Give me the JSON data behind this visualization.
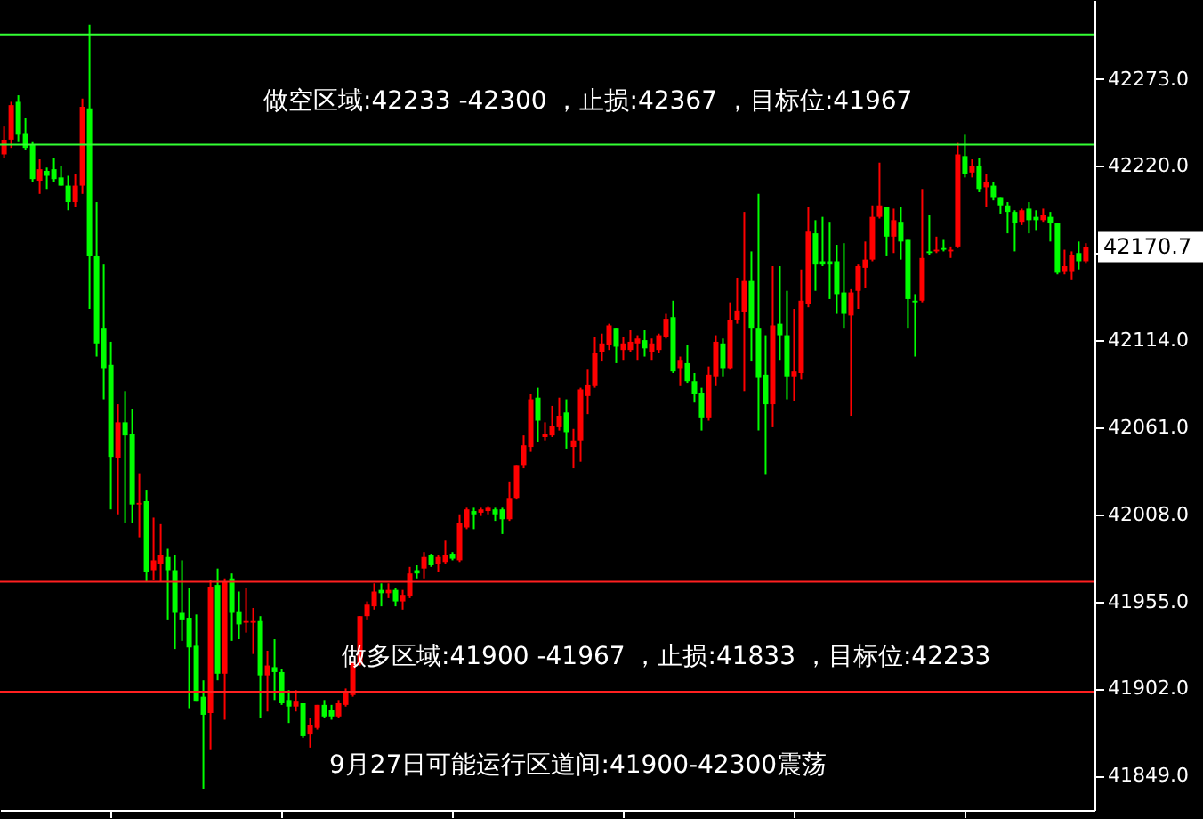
{
  "chart_data": {
    "type": "candlestick",
    "categories": [
      null,
      null,
      null,
      null,
      null,
      null,
      null,
      null,
      null,
      null,
      null,
      null,
      null,
      null,
      null,
      null,
      null,
      null,
      null,
      null,
      null,
      null,
      null,
      null,
      null,
      null,
      null,
      null,
      null,
      null,
      null,
      null,
      null,
      null,
      null,
      null,
      null,
      null,
      null,
      null,
      null,
      null,
      null,
      null,
      null,
      null,
      null,
      null,
      null,
      null,
      null,
      null,
      null,
      null,
      null,
      null,
      null,
      null,
      null,
      null,
      null,
      null,
      null,
      null,
      null,
      null,
      null,
      null,
      null,
      null,
      null,
      null,
      null,
      null,
      null,
      null,
      null,
      null,
      null,
      null,
      null,
      null,
      null,
      null,
      null,
      null,
      null,
      null,
      null,
      null,
      null,
      null,
      null,
      null,
      null,
      null,
      null,
      null,
      null,
      null,
      null,
      null,
      null,
      null,
      null,
      null,
      null,
      null,
      null,
      null,
      null,
      null,
      null,
      null,
      null,
      null,
      null,
      null,
      null,
      null,
      null,
      null,
      null,
      null,
      null,
      null,
      null,
      null,
      null,
      null,
      null,
      null,
      null,
      null,
      null,
      null,
      null,
      null,
      null,
      null,
      null,
      null,
      null,
      null,
      null,
      null,
      null,
      null,
      null,
      null,
      null,
      null,
      null
    ],
    "ohlc": [
      [
        42227,
        42244,
        42225,
        42236
      ],
      [
        42236,
        42259,
        42231,
        42257
      ],
      [
        42259,
        42263,
        42235,
        42239
      ],
      [
        42240,
        42249,
        42230,
        42231
      ],
      [
        42233,
        42235,
        42210,
        42212
      ],
      [
        42211,
        42224,
        42203,
        42218
      ],
      [
        42217,
        42219,
        42206,
        42214
      ],
      [
        42218,
        42225,
        42210,
        42212
      ],
      [
        42213,
        42220,
        42208,
        42208
      ],
      [
        42208,
        42214,
        42193,
        42198
      ],
      [
        42198,
        42215,
        42195,
        42208
      ],
      [
        42208,
        42261,
        42203,
        42256
      ],
      [
        42255,
        42306,
        42133,
        42165
      ],
      [
        42165,
        42198,
        42104,
        42112
      ],
      [
        42121,
        42160,
        42078,
        42097
      ],
      [
        42099,
        42113,
        42011,
        42043
      ],
      [
        42042,
        42075,
        42008,
        42064
      ],
      [
        42064,
        42083,
        42003,
        42056
      ],
      [
        42057,
        42072,
        42003,
        42014
      ],
      [
        42014,
        42033,
        41994,
        42015
      ],
      [
        42016,
        42023,
        41967,
        41973
      ],
      [
        41974,
        42006,
        41968,
        41980
      ],
      [
        41978,
        42002,
        41967,
        41983
      ],
      [
        41982,
        41987,
        41944,
        41974
      ],
      [
        41974,
        41983,
        41926,
        41948
      ],
      [
        41948,
        41980,
        41931,
        41944
      ],
      [
        41945,
        41963,
        41890,
        41927
      ],
      [
        41928,
        41947,
        41894,
        41894
      ],
      [
        41897,
        41907,
        41841,
        41886
      ],
      [
        41887,
        41968,
        41865,
        41964
      ],
      [
        41965,
        41975,
        41907,
        41911
      ],
      [
        41911,
        41969,
        41883,
        41967
      ],
      [
        41969,
        41972,
        41931,
        41948
      ],
      [
        41949,
        41961,
        41932,
        41941
      ],
      [
        41942,
        41963,
        41936,
        41943
      ],
      [
        41942,
        41951,
        41923,
        41943
      ],
      [
        41943,
        41946,
        41884,
        41910
      ],
      [
        41910,
        41925,
        41888,
        41916
      ],
      [
        41915,
        41932,
        41895,
        41912
      ],
      [
        41912,
        41914,
        41892,
        41893
      ],
      [
        41895,
        41901,
        41881,
        41891
      ],
      [
        41891,
        41901,
        41888,
        41894
      ],
      [
        41893,
        41893,
        41872,
        41873
      ],
      [
        41874,
        41884,
        41866,
        41880
      ],
      [
        41878,
        41892,
        41877,
        41892
      ],
      [
        41892,
        41895,
        41884,
        41885
      ],
      [
        41889,
        41892,
        41883,
        41885
      ],
      [
        41885,
        41895,
        41884,
        41893
      ],
      [
        41892,
        41902,
        41891,
        41899
      ],
      [
        41898,
        41918,
        41897,
        41918
      ],
      [
        41917,
        41946,
        41916,
        41946
      ],
      [
        41946,
        41955,
        41944,
        41953
      ],
      [
        41952,
        41966,
        41950,
        41961
      ],
      [
        41962,
        41966,
        41952,
        41960
      ],
      [
        41960,
        41966,
        41957,
        41962
      ],
      [
        41962,
        41963,
        41952,
        41955
      ],
      [
        41955,
        41962,
        41950,
        41959
      ],
      [
        41958,
        41976,
        41957,
        41972
      ],
      [
        41974,
        41977,
        41969,
        41972
      ],
      [
        41975,
        41985,
        41969,
        41982
      ],
      [
        41983,
        41984,
        41976,
        41977
      ],
      [
        41978,
        41983,
        41973,
        41982
      ],
      [
        41979,
        41992,
        41978,
        41983
      ],
      [
        41984,
        41985,
        41980,
        41981
      ],
      [
        41980,
        42008,
        41979,
        42003
      ],
      [
        42000,
        42012,
        41999,
        42011
      ],
      [
        42010,
        42012,
        41999,
        42008
      ],
      [
        42009,
        42012,
        42007,
        42011
      ],
      [
        42010,
        42013,
        42008,
        42012
      ],
      [
        42011,
        42012,
        42004,
        42008
      ],
      [
        42011,
        42012,
        41996,
        42005
      ],
      [
        42005,
        42028,
        42004,
        42018
      ],
      [
        42018,
        42038,
        42017,
        42038
      ],
      [
        42038,
        42056,
        42036,
        42050
      ],
      [
        42049,
        42081,
        42046,
        42078
      ],
      [
        42079,
        42085,
        42052,
        42065
      ],
      [
        42055,
        42064,
        42053,
        42057
      ],
      [
        42056,
        42074,
        42055,
        42062
      ],
      [
        42061,
        42079,
        42059,
        42068
      ],
      [
        42070,
        42078,
        42048,
        42058
      ],
      [
        42049,
        42060,
        42036,
        42053
      ],
      [
        42053,
        42085,
        42040,
        42084
      ],
      [
        42080,
        42096,
        42069,
        42087
      ],
      [
        42086,
        42116,
        42085,
        42106
      ],
      [
        42107,
        42118,
        42101,
        42112
      ],
      [
        42111,
        42124,
        42108,
        42123
      ],
      [
        42121,
        42121,
        42100,
        42110
      ],
      [
        42108,
        42116,
        42102,
        42112
      ],
      [
        42108,
        42120,
        42107,
        42113
      ],
      [
        42112,
        42117,
        42102,
        42115
      ],
      [
        42114,
        42120,
        42104,
        42109
      ],
      [
        42107,
        42115,
        42102,
        42112
      ],
      [
        42108,
        42118,
        42106,
        42117
      ],
      [
        42116,
        42130,
        42115,
        42127
      ],
      [
        42128,
        42138,
        42094,
        42095
      ],
      [
        42097,
        42104,
        42086,
        42102
      ],
      [
        42100,
        42111,
        42088,
        42089
      ],
      [
        42089,
        42094,
        42076,
        42081
      ],
      [
        42082,
        42085,
        42059,
        42067
      ],
      [
        42067,
        42098,
        42065,
        42093
      ],
      [
        42092,
        42117,
        42086,
        42113
      ],
      [
        42112,
        42115,
        42092,
        42097
      ],
      [
        42097,
        42137,
        42096,
        42126
      ],
      [
        42126,
        42152,
        42124,
        42132
      ],
      [
        42131,
        42192,
        42083,
        42150
      ],
      [
        42150,
        42168,
        42101,
        42121
      ],
      [
        42121,
        42203,
        42059,
        42091
      ],
      [
        42093,
        42117,
        42032,
        42075
      ],
      [
        42075,
        42159,
        42061,
        42123
      ],
      [
        42124,
        42159,
        42102,
        42117
      ],
      [
        42117,
        42144,
        42078,
        42092
      ],
      [
        42092,
        42133,
        42077,
        42095
      ],
      [
        42094,
        42157,
        42090,
        42138
      ],
      [
        42136,
        42195,
        42134,
        42180
      ],
      [
        42179,
        42187,
        42144,
        42160
      ],
      [
        42162,
        42189,
        42159,
        42160
      ],
      [
        42162,
        42186,
        42139,
        42160
      ],
      [
        42162,
        42172,
        42130,
        42142
      ],
      [
        42143,
        42173,
        42121,
        42130
      ],
      [
        42129,
        42145,
        42068,
        42143
      ],
      [
        42144,
        42160,
        42133,
        42159
      ],
      [
        42158,
        42174,
        42146,
        42163
      ],
      [
        42163,
        42196,
        42162,
        42189
      ],
      [
        42189,
        42222,
        42188,
        42196
      ],
      [
        42195,
        42195,
        42165,
        42177
      ],
      [
        42177,
        42194,
        42167,
        42187
      ],
      [
        42186,
        42195,
        42163,
        42174
      ],
      [
        42175,
        42175,
        42121,
        42139
      ],
      [
        42138,
        42142,
        42104,
        42137
      ],
      [
        42138,
        42206,
        42137,
        42164
      ],
      [
        42168,
        42190,
        42166,
        42167
      ],
      [
        42168,
        42177,
        42167,
        42169
      ],
      [
        42170,
        42175,
        42168,
        42169
      ],
      [
        42168,
        42171,
        42164,
        42169
      ],
      [
        42171,
        42234,
        42170,
        42227
      ],
      [
        42226,
        42239,
        42213,
        42215
      ],
      [
        42216,
        42224,
        42213,
        42220
      ],
      [
        42220,
        42225,
        42204,
        42206
      ],
      [
        42207,
        42215,
        42195,
        42210
      ],
      [
        42208,
        42210,
        42199,
        42201
      ],
      [
        42201,
        42201,
        42191,
        42196
      ],
      [
        42196,
        42198,
        42179,
        42192
      ],
      [
        42192,
        42193,
        42168,
        42185
      ],
      [
        42186,
        42194,
        42184,
        42193
      ],
      [
        42194,
        42198,
        42179,
        42187
      ],
      [
        42189,
        42193,
        42181,
        42187
      ],
      [
        42187,
        42194,
        42186,
        42190
      ],
      [
        42189,
        42192,
        42174,
        42185
      ],
      [
        42185,
        42185,
        42154,
        42155
      ],
      [
        42156,
        42169,
        42154,
        42159
      ],
      [
        42156,
        42168,
        42151,
        42166
      ],
      [
        42167,
        42174,
        42157,
        42162
      ],
      [
        42162,
        42173,
        42161,
        42170.7
      ]
    ],
    "colors": [
      "#ff0000",
      "#ff0000",
      "#00ff00",
      "#00ff00",
      "#00ff00",
      "#ff0000",
      "#00ff00",
      "#00ff00",
      "#00ff00",
      "#00ff00",
      "#ff0000",
      "#ff0000",
      "#00ff00",
      "#00ff00",
      "#00ff00",
      "#00ff00",
      "#ff0000",
      "#00ff00",
      "#00ff00",
      "#ff0000",
      "#00ff00",
      "#ff0000",
      "#ff0000",
      "#00ff00",
      "#00ff00",
      "#00ff00",
      "#00ff00",
      "#00ff00",
      "#00ff00",
      "#ff0000",
      "#00ff00",
      "#ff0000",
      "#00ff00",
      "#00ff00",
      "#ff0000",
      "#ff0000",
      "#00ff00",
      "#ff0000",
      "#00ff00",
      "#00ff00",
      "#00ff00",
      "#ff0000",
      "#00ff00",
      "#ff0000",
      "#ff0000",
      "#00ff00",
      "#00ff00",
      "#ff0000",
      "#ff0000",
      "#ff0000",
      "#ff0000",
      "#ff0000",
      "#ff0000",
      "#00ff00",
      "#ff0000",
      "#00ff00",
      "#ff0000",
      "#ff0000",
      "#00ff00",
      "#ff0000",
      "#00ff00",
      "#ff0000",
      "#ff0000",
      "#00ff00",
      "#ff0000",
      "#ff0000",
      "#00ff00",
      "#ff0000",
      "#ff0000",
      "#00ff00",
      "#00ff00",
      "#ff0000",
      "#ff0000",
      "#ff0000",
      "#ff0000",
      "#00ff00",
      "#ff0000",
      "#ff0000",
      "#ff0000",
      "#00ff00",
      "#ff0000",
      "#ff0000",
      "#ff0000",
      "#ff0000",
      "#ff0000",
      "#ff0000",
      "#00ff00",
      "#ff0000",
      "#ff0000",
      "#ff0000",
      "#00ff00",
      "#ff0000",
      "#ff0000",
      "#ff0000",
      "#00ff00",
      "#ff0000",
      "#00ff00",
      "#00ff00",
      "#00ff00",
      "#ff0000",
      "#ff0000",
      "#00ff00",
      "#ff0000",
      "#ff0000",
      "#ff0000",
      "#00ff00",
      "#00ff00",
      "#00ff00",
      "#ff0000",
      "#00ff00",
      "#00ff00",
      "#ff0000",
      "#ff0000",
      "#ff0000",
      "#00ff00",
      "#00ff00",
      "#00ff00",
      "#00ff00",
      "#00ff00",
      "#ff0000",
      "#ff0000",
      "#ff0000",
      "#ff0000",
      "#ff0000",
      "#00ff00",
      "#ff0000",
      "#00ff00",
      "#00ff00",
      "#00ff00",
      "#ff0000",
      "#00ff00",
      "#ff0000",
      "#00ff00",
      "#ff0000",
      "#ff0000",
      "#00ff00",
      "#ff0000",
      "#00ff00",
      "#ff0000",
      "#00ff00",
      "#00ff00",
      "#00ff00",
      "#00ff00",
      "#ff0000",
      "#00ff00",
      "#00ff00",
      "#ff0000",
      "#00ff00",
      "#00ff00",
      "#ff0000",
      "#ff0000",
      "#00ff00",
      "#ff0000"
    ],
    "ylim": [
      41828,
      42321
    ],
    "yticks": [
      {
        "value": 41849,
        "label": "41849.0"
      },
      {
        "value": 41902,
        "label": "41902.0"
      },
      {
        "value": 41955,
        "label": "41955.0"
      },
      {
        "value": 42008,
        "label": "42008.0"
      },
      {
        "value": 42061,
        "label": "42061.0"
      },
      {
        "value": 42114,
        "label": "42114.0"
      },
      {
        "value": 42167,
        "label": null
      },
      {
        "value": 42220,
        "label": "42220.0"
      },
      {
        "value": 42273,
        "label": "42273.0"
      }
    ],
    "tick_labels": "y",
    "ref_lines": [
      {
        "axis": "y",
        "value": 42300,
        "color": "#33ff33"
      },
      {
        "axis": "y",
        "value": 42233,
        "color": "#33ff33"
      },
      {
        "axis": "y",
        "value": 41967,
        "color": "#ff2020"
      },
      {
        "axis": "y",
        "value": 41900,
        "color": "#ff2020"
      }
    ],
    "annotations": [
      "做空区域:42233 -42300 ，止损:42367 ，目标位:41967",
      "做多区域:41900 -41967 ，止损:41833 ，目标位:42233",
      "9月27日可能运行区道间:41900-42300震荡",
      "42170.7"
    ]
  }
}
